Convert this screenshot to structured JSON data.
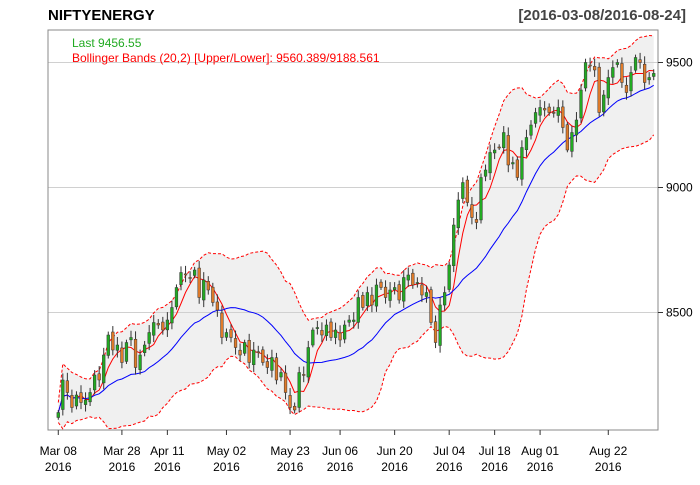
{
  "header": {
    "symbol": "NIFTYENERGY",
    "date_range": "[2016-03-08/2016-08-24]"
  },
  "legend": {
    "last_label": "Last 9456.55",
    "bb_label": "Bollinger Bands (20,2) [Upper/Lower]: 9560.389/9188.561"
  },
  "colors": {
    "up": "#22aa22",
    "down": "#e07b2a",
    "bb_band": "#ff0000",
    "sma": "#0000ff",
    "last_text": "#22aa22",
    "bb_text": "#ff0000",
    "band_fill": "#f0f0f0",
    "grid": "#d0d0d0"
  },
  "chart_data": {
    "type": "candlestick",
    "title": "NIFTYENERGY",
    "subtitle": "[2016-03-08/2016-08-24]",
    "ylim": [
      8030,
      9630
    ],
    "y_ticks": [
      8500,
      9000,
      9500
    ],
    "x_ticks": [
      {
        "index": 0,
        "label": "Mar 08",
        "year": "2016"
      },
      {
        "index": 14,
        "label": "Mar 28",
        "year": "2016"
      },
      {
        "index": 24,
        "label": "Apr 11",
        "year": "2016"
      },
      {
        "index": 37,
        "label": "May 02",
        "year": "2016"
      },
      {
        "index": 51,
        "label": "May 23",
        "year": "2016"
      },
      {
        "index": 62,
        "label": "Jun 06",
        "year": "2016"
      },
      {
        "index": 74,
        "label": "Jun 20",
        "year": "2016"
      },
      {
        "index": 86,
        "label": "Jul 04",
        "year": "2016"
      },
      {
        "index": 96,
        "label": "Jul 18",
        "year": "2016"
      },
      {
        "index": 106,
        "label": "Aug 01",
        "year": "2016"
      },
      {
        "index": 121,
        "label": "Aug 22",
        "year": "2016"
      }
    ],
    "grid": "horizontal",
    "bollinger": {
      "period": 20,
      "sd": 2,
      "upper_last": 9560.389,
      "lower_last": 9188.561
    },
    "last_close": 9456.55,
    "series": [
      {
        "name": "close",
        "values": [
          8100,
          8230,
          8180,
          8120,
          8170,
          8140,
          8150,
          8180,
          8250,
          8230,
          8330,
          8410,
          8350,
          8370,
          8300,
          8380,
          8400,
          8280,
          8330,
          8370,
          8420,
          8460,
          8450,
          8430,
          8470,
          8520,
          8600,
          8660,
          8650,
          8640,
          8670,
          8560,
          8630,
          8590,
          8540,
          8510,
          8400,
          8420,
          8400,
          8360,
          8330,
          8380,
          8300,
          8350,
          8340,
          8300,
          8280,
          8320,
          8230,
          8260,
          8180,
          8120,
          8110,
          8260,
          8250,
          8360,
          8430,
          8440,
          8410,
          8450,
          8400,
          8430,
          8390,
          8450,
          8470,
          8470,
          8560,
          8520,
          8580,
          8530,
          8610,
          8600,
          8560,
          8590,
          8600,
          8550,
          8640,
          8650,
          8610,
          8620,
          8570,
          8580,
          8460,
          8380,
          8530,
          8580,
          8690,
          8850,
          8950,
          9020,
          8940,
          8880,
          8860,
          9040,
          9070,
          9140,
          9150,
          9160,
          9220,
          9090,
          9100,
          9040,
          9160,
          9200,
          9250,
          9300,
          9320,
          9310,
          9300,
          9300,
          9320,
          9240,
          9150,
          9220,
          9270,
          9390,
          9500,
          9490,
          9470,
          9300,
          9370,
          9440,
          9480,
          9500,
          9420,
          9380,
          9460,
          9520,
          9500,
          9420,
          9440,
          9456.55
        ]
      }
    ]
  }
}
